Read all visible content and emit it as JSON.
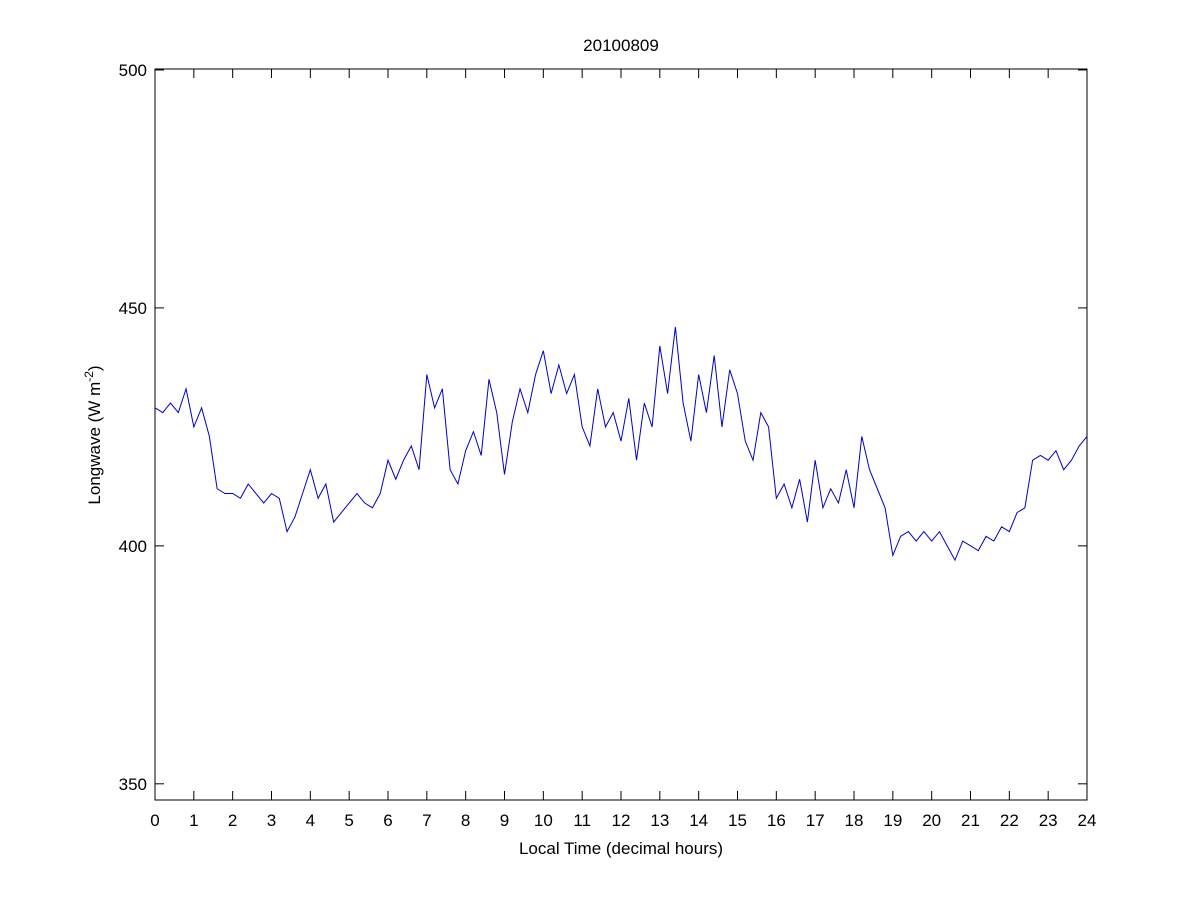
{
  "chart_data": {
    "type": "line",
    "title": "20100809",
    "xlabel": "Local Time (decimal hours)",
    "ylabel": {
      "text": "Longwave (W m",
      "superscript": "-2",
      "suffix": ")"
    },
    "x": [
      0,
      0.2,
      0.4,
      0.6,
      0.8,
      1,
      1.2,
      1.4,
      1.6,
      1.8,
      2,
      2.2,
      2.4,
      2.6,
      2.8,
      3,
      3.2,
      3.4,
      3.6,
      3.8,
      4,
      4.2,
      4.4,
      4.6,
      4.8,
      5,
      5.2,
      5.4,
      5.6,
      5.8,
      6,
      6.2,
      6.4,
      6.6,
      6.8,
      7,
      7.2,
      7.4,
      7.6,
      7.8,
      8,
      8.2,
      8.4,
      8.6,
      8.8,
      9,
      9.2,
      9.4,
      9.6,
      9.8,
      10,
      10.2,
      10.4,
      10.6,
      10.8,
      11,
      11.2,
      11.4,
      11.6,
      11.8,
      12,
      12.2,
      12.4,
      12.6,
      12.8,
      13,
      13.2,
      13.4,
      13.6,
      13.8,
      14,
      14.2,
      14.4,
      14.6,
      14.8,
      15,
      15.2,
      15.4,
      15.6,
      15.8,
      16,
      16.2,
      16.4,
      16.6,
      16.8,
      17,
      17.2,
      17.4,
      17.6,
      17.8,
      18,
      18.2,
      18.4,
      18.6,
      18.8,
      19,
      19.2,
      19.4,
      19.6,
      19.8,
      20,
      20.2,
      20.4,
      20.6,
      20.8,
      21,
      21.2,
      21.4,
      21.6,
      21.8,
      22,
      22.2,
      22.4,
      22.6,
      22.8,
      23,
      23.2,
      23.4,
      23.6,
      23.8,
      24
    ],
    "series": [
      {
        "color": "#0000cc",
        "values": [
          429,
          428,
          430,
          428,
          433,
          425,
          429,
          423,
          412,
          411,
          411,
          410,
          413,
          411,
          409,
          411,
          410,
          403,
          406,
          411,
          416,
          410,
          413,
          405,
          407,
          409,
          411,
          409,
          408,
          411,
          418,
          414,
          418,
          421,
          416,
          436,
          429,
          433,
          416,
          413,
          420,
          424,
          419,
          435,
          428,
          415,
          426,
          433,
          428,
          436,
          441,
          432,
          438,
          432,
          436,
          425,
          421,
          433,
          425,
          428,
          422,
          431,
          418,
          430,
          425,
          442,
          432,
          446,
          430,
          422,
          436,
          428,
          440,
          425,
          437,
          432,
          422,
          418,
          428,
          425,
          410,
          413,
          408,
          414,
          405,
          418,
          408,
          412,
          409,
          416,
          408,
          423,
          416,
          412,
          408,
          398,
          402,
          403,
          401,
          403,
          401,
          403,
          400,
          397,
          401,
          400,
          399,
          402,
          401,
          404,
          403,
          407,
          408,
          418,
          419,
          418,
          420,
          416,
          418,
          421,
          423
        ]
      }
    ],
    "xlim": [
      0,
      24
    ],
    "xticks": [
      0,
      1,
      2,
      3,
      4,
      5,
      6,
      7,
      8,
      9,
      10,
      11,
      12,
      13,
      14,
      15,
      16,
      17,
      18,
      19,
      20,
      21,
      22,
      23,
      24
    ],
    "ylim": [
      346.6,
      500.2
    ],
    "yticks": [
      350,
      400,
      450,
      500
    ],
    "grid": false
  }
}
